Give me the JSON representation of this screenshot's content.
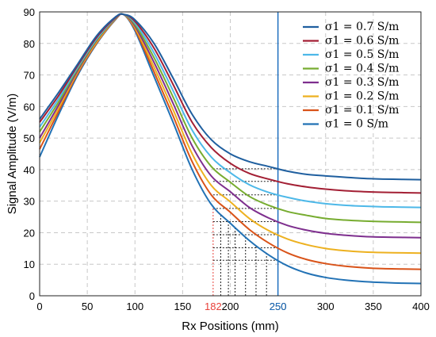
{
  "chart_data": {
    "type": "line",
    "title": "",
    "xlabel": "Rx Positions (mm)",
    "ylabel": "Signal Amplitude (V/m)",
    "xlim": [
      0,
      400
    ],
    "ylim": [
      0,
      90
    ],
    "xticks": [
      0,
      50,
      100,
      150,
      200,
      250,
      300,
      350,
      400
    ],
    "yticks": [
      0,
      10,
      20,
      30,
      40,
      50,
      60,
      70,
      80,
      90
    ],
    "grid": true,
    "legend_position": "top-right",
    "annotations": [
      {
        "label": "182",
        "x": 182,
        "color": "#e8413a"
      },
      {
        "label": "250",
        "x": 250,
        "color": "#1f6fbf"
      }
    ],
    "marker_lines_x": [
      182,
      190,
      198,
      205,
      216,
      227,
      238
    ],
    "x": [
      0,
      20,
      40,
      60,
      80,
      88,
      100,
      120,
      140,
      160,
      180,
      200,
      220,
      240,
      260,
      280,
      300,
      320,
      340,
      360,
      380,
      400
    ],
    "series": [
      {
        "name": "σ1 = 0.7 S/m",
        "color": "#1f5f9f",
        "values": [
          56,
          64.5,
          73.5,
          82.5,
          88.5,
          89.2,
          87.5,
          80,
          69,
          57.5,
          49.5,
          45,
          42.5,
          41,
          39.5,
          38.5,
          38,
          37.6,
          37.2,
          37,
          36.9,
          36.8
        ]
      },
      {
        "name": "σ1 = 0.6 S/m",
        "color": "#a31f34",
        "values": [
          55,
          63.5,
          73,
          82,
          88.3,
          89.2,
          87,
          78.5,
          67,
          55,
          47,
          42,
          38.8,
          37,
          35.5,
          34.5,
          33.8,
          33.3,
          33,
          32.8,
          32.7,
          32.6
        ]
      },
      {
        "name": "σ1 = 0.5 S/m",
        "color": "#4db8e8",
        "values": [
          53.5,
          62.5,
          72.5,
          81.5,
          88.2,
          89.2,
          86.5,
          77,
          65,
          52.5,
          44,
          39,
          35.2,
          32.8,
          31.2,
          30,
          29.2,
          28.7,
          28.4,
          28.2,
          28.1,
          28
        ]
      },
      {
        "name": "σ1 = 0.4 S/m",
        "color": "#77ac30",
        "values": [
          52,
          61.5,
          72,
          81.2,
          88.1,
          89.2,
          86,
          75.5,
          63,
          50,
          41,
          36,
          31.5,
          28.7,
          26.7,
          25.5,
          24.5,
          24,
          23.7,
          23.5,
          23.4,
          23.3
        ]
      },
      {
        "name": "σ1 = 0.3 S/m",
        "color": "#7e2f8e",
        "values": [
          50,
          60.5,
          71.5,
          81,
          88,
          89.2,
          85.5,
          74,
          61,
          47.5,
          38,
          33,
          28,
          24.7,
          22.3,
          20.8,
          19.8,
          19.2,
          18.8,
          18.6,
          18.5,
          18.4
        ]
      },
      {
        "name": "σ1 = 0.2 S/m",
        "color": "#edb120",
        "values": [
          48.5,
          59.5,
          71,
          80.5,
          87.9,
          89.2,
          85,
          72.5,
          59,
          45,
          35,
          29.8,
          24.5,
          20.7,
          18,
          16.2,
          15,
          14.3,
          13.9,
          13.7,
          13.6,
          13.5
        ]
      },
      {
        "name": "σ1 = 0.1 S/m",
        "color": "#d95319",
        "values": [
          46.5,
          58.5,
          70.5,
          80.2,
          87.8,
          89.2,
          84.5,
          71,
          57,
          42.5,
          32,
          26.5,
          21,
          16.8,
          13.6,
          11.5,
          10.2,
          9.4,
          8.9,
          8.6,
          8.5,
          8.4
        ]
      },
      {
        "name": "σ1 = 0 S/m",
        "color": "#2272b5",
        "values": [
          44,
          57.5,
          70,
          80,
          87.7,
          89.2,
          84,
          69.5,
          55,
          40,
          29,
          23,
          17.5,
          13,
          9.5,
          7.2,
          5.8,
          5,
          4.5,
          4.2,
          4,
          3.9
        ]
      }
    ]
  }
}
